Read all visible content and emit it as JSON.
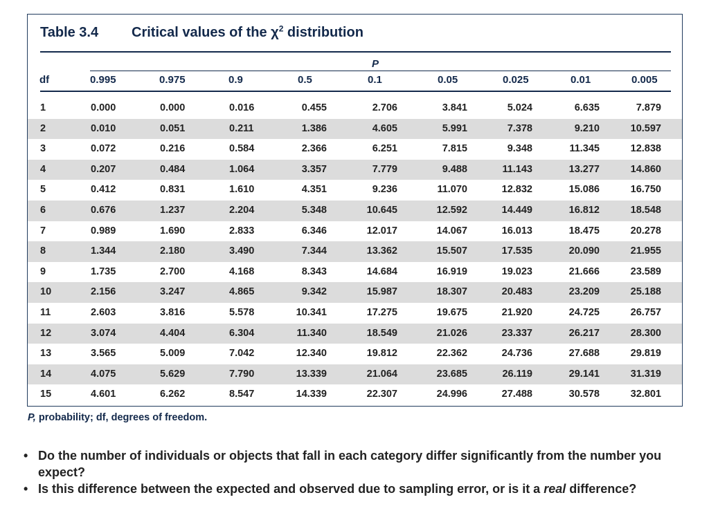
{
  "table": {
    "number": "Table 3.4",
    "title": "Critical values of the χ",
    "title_sup": "2",
    "title_suffix": " distribution",
    "p_label": "P",
    "df_label": "df",
    "columns": [
      "0.995",
      "0.975",
      "0.9",
      "0.5",
      "0.1",
      "0.05",
      "0.025",
      "0.01",
      "0.005"
    ],
    "rows": [
      {
        "df": "1",
        "values": [
          "0.000",
          "0.000",
          "0.016",
          "0.455",
          "2.706",
          "3.841",
          "5.024",
          "6.635",
          "7.879"
        ]
      },
      {
        "df": "2",
        "values": [
          "0.010",
          "0.051",
          "0.211",
          "1.386",
          "4.605",
          "5.991",
          "7.378",
          "9.210",
          "10.597"
        ]
      },
      {
        "df": "3",
        "values": [
          "0.072",
          "0.216",
          "0.584",
          "2.366",
          "6.251",
          "7.815",
          "9.348",
          "11.345",
          "12.838"
        ]
      },
      {
        "df": "4",
        "values": [
          "0.207",
          "0.484",
          "1.064",
          "3.357",
          "7.779",
          "9.488",
          "11.143",
          "13.277",
          "14.860"
        ]
      },
      {
        "df": "5",
        "values": [
          "0.412",
          "0.831",
          "1.610",
          "4.351",
          "9.236",
          "11.070",
          "12.832",
          "15.086",
          "16.750"
        ]
      },
      {
        "df": "6",
        "values": [
          "0.676",
          "1.237",
          "2.204",
          "5.348",
          "10.645",
          "12.592",
          "14.449",
          "16.812",
          "18.548"
        ]
      },
      {
        "df": "7",
        "values": [
          "0.989",
          "1.690",
          "2.833",
          "6.346",
          "12.017",
          "14.067",
          "16.013",
          "18.475",
          "20.278"
        ]
      },
      {
        "df": "8",
        "values": [
          "1.344",
          "2.180",
          "3.490",
          "7.344",
          "13.362",
          "15.507",
          "17.535",
          "20.090",
          "21.955"
        ]
      },
      {
        "df": "9",
        "values": [
          "1.735",
          "2.700",
          "4.168",
          "8.343",
          "14.684",
          "16.919",
          "19.023",
          "21.666",
          "23.589"
        ]
      },
      {
        "df": "10",
        "values": [
          "2.156",
          "3.247",
          "4.865",
          "9.342",
          "15.987",
          "18.307",
          "20.483",
          "23.209",
          "25.188"
        ]
      },
      {
        "df": "11",
        "values": [
          "2.603",
          "3.816",
          "5.578",
          "10.341",
          "17.275",
          "19.675",
          "21.920",
          "24.725",
          "26.757"
        ]
      },
      {
        "df": "12",
        "values": [
          "3.074",
          "4.404",
          "6.304",
          "11.340",
          "18.549",
          "21.026",
          "23.337",
          "26.217",
          "28.300"
        ]
      },
      {
        "df": "13",
        "values": [
          "3.565",
          "5.009",
          "7.042",
          "12.340",
          "19.812",
          "22.362",
          "24.736",
          "27.688",
          "29.819"
        ]
      },
      {
        "df": "14",
        "values": [
          "4.075",
          "5.629",
          "7.790",
          "13.339",
          "21.064",
          "23.685",
          "26.119",
          "29.141",
          "31.319"
        ]
      },
      {
        "df": "15",
        "values": [
          "4.601",
          "6.262",
          "8.547",
          "14.339",
          "22.307",
          "24.996",
          "27.488",
          "30.578",
          "32.801"
        ]
      }
    ],
    "footnote_p": "P,",
    "footnote_rest": " probability; df, degrees of freedom."
  },
  "bullets": {
    "marker": "•",
    "item1": "Do the number of individuals or objects that fall in each category differ significantly from the number you expect?",
    "item2_before": "Is this difference between the expected and observed due to sampling error, or is it a ",
    "item2_emph": "real",
    "item2_after": " difference?"
  },
  "colors": {
    "heading_navy": "#13294b",
    "row_shade": "#dcdcdc"
  }
}
